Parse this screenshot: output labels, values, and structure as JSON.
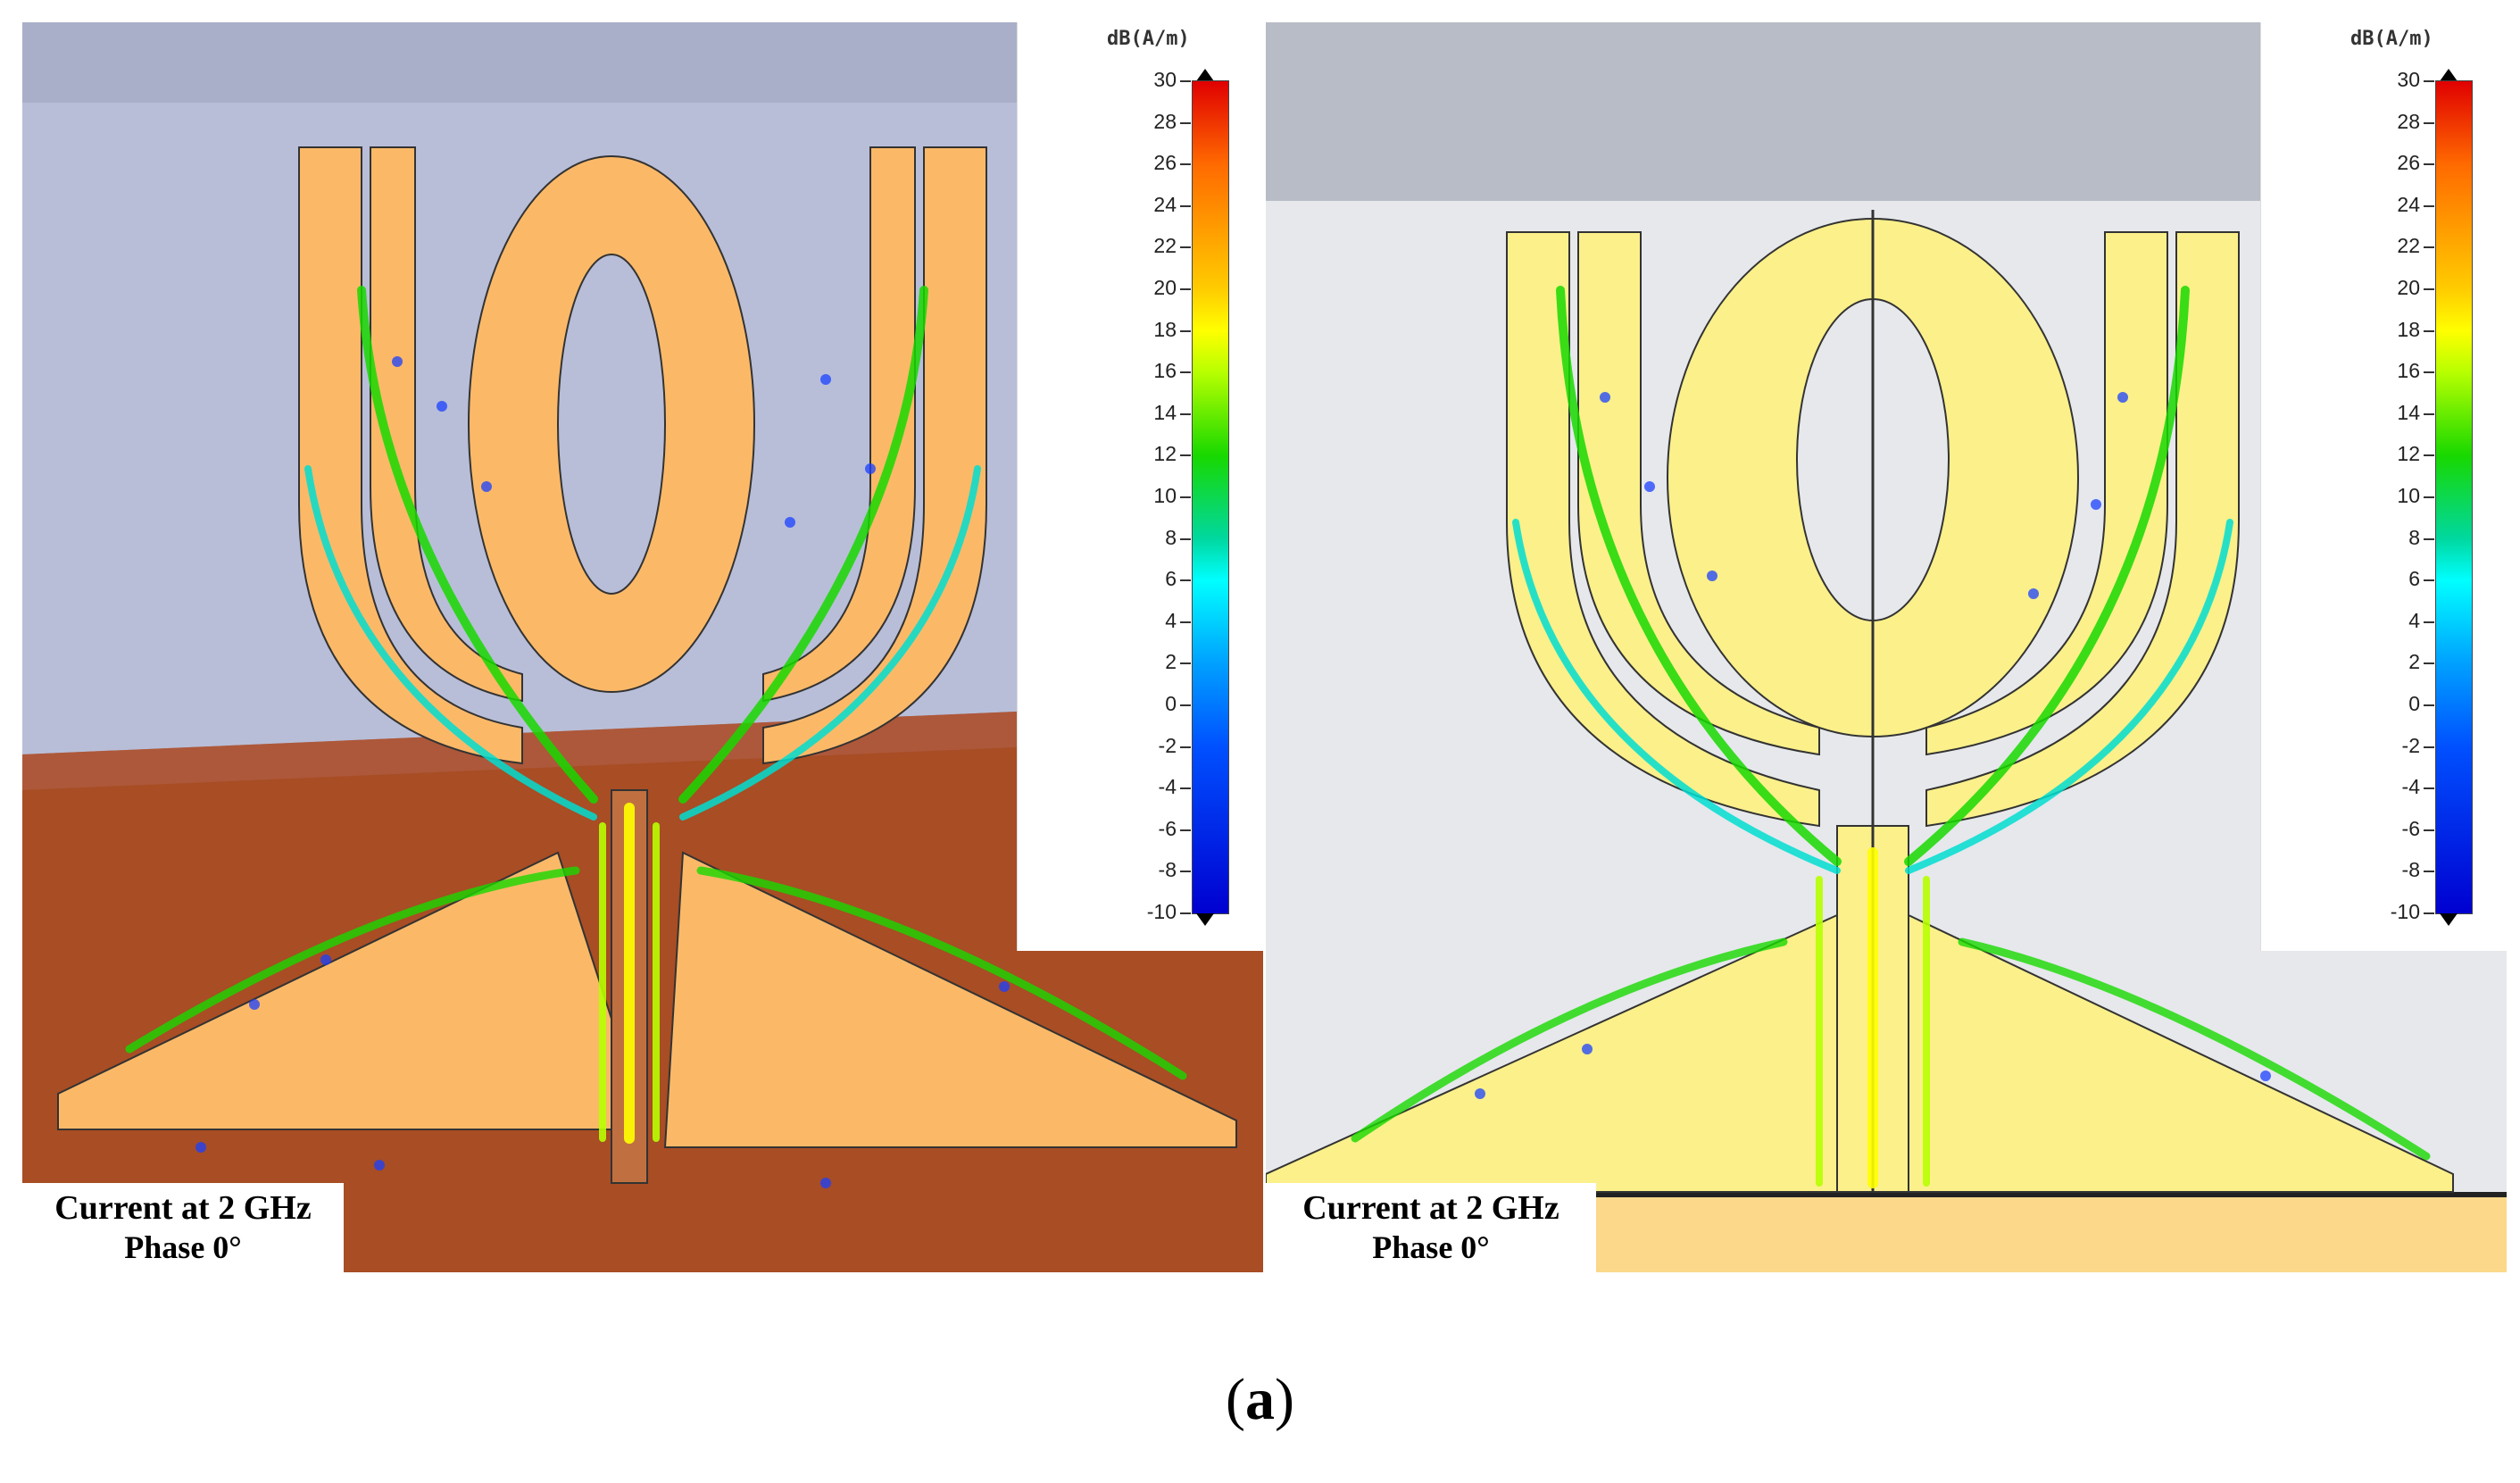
{
  "panels": [
    {
      "caption_line1": "Current at 2 GHz",
      "caption_line2": "Phase 0°",
      "legend_unit": "dB(A/m)",
      "legend_ticks": [
        "30",
        "28",
        "26",
        "24",
        "22",
        "20",
        "18",
        "16",
        "14",
        "12",
        "10",
        "8",
        "6",
        "4",
        "2",
        "0",
        "-2",
        "-4",
        "-6",
        "-8",
        "-10"
      ]
    },
    {
      "caption_line1": "Current at 2 GHz",
      "caption_line2": "Phase 0°",
      "legend_unit": "dB(A/m)",
      "legend_ticks": [
        "30",
        "28",
        "26",
        "24",
        "22",
        "20",
        "18",
        "16",
        "14",
        "12",
        "10",
        "8",
        "6",
        "4",
        "2",
        "0",
        "-2",
        "-4",
        "-6",
        "-8",
        "-10"
      ]
    }
  ],
  "subfigure_label": {
    "open": "(",
    "letter": "a",
    "close": ")"
  },
  "colors": {
    "antenna_left": "#fbb968",
    "antenna_right": "#fbf08a",
    "ground_left": "#a84d24",
    "background_left": "#b8bed8",
    "background_right": "#e6e8ec"
  }
}
